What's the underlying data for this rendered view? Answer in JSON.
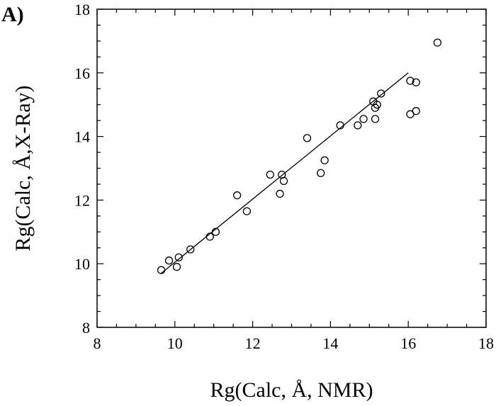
{
  "panel_label": "A)",
  "chart_data": {
    "type": "scatter",
    "title": "",
    "xlabel": "Rg(Calc, Å, NMR)",
    "ylabel": "Rg(Calc, Å,X-Ray)",
    "xlim": [
      8,
      18
    ],
    "ylim": [
      8,
      18
    ],
    "xticks": [
      8,
      10,
      12,
      14,
      16,
      18
    ],
    "yticks": [
      8,
      10,
      12,
      14,
      16,
      18
    ],
    "grid": false,
    "series": [
      {
        "marker": "open-circle",
        "points": [
          [
            9.65,
            9.8
          ],
          [
            9.85,
            10.1
          ],
          [
            10.05,
            9.9
          ],
          [
            10.1,
            10.2
          ],
          [
            10.4,
            10.45
          ],
          [
            10.9,
            10.85
          ],
          [
            11.05,
            11.0
          ],
          [
            11.6,
            12.15
          ],
          [
            11.85,
            11.65
          ],
          [
            12.45,
            12.8
          ],
          [
            12.7,
            12.2
          ],
          [
            12.75,
            12.8
          ],
          [
            12.8,
            12.6
          ],
          [
            13.4,
            13.95
          ],
          [
            13.75,
            12.85
          ],
          [
            13.85,
            13.25
          ],
          [
            14.25,
            14.35
          ],
          [
            14.7,
            14.35
          ],
          [
            14.85,
            14.55
          ],
          [
            15.1,
            15.1
          ],
          [
            15.15,
            14.9
          ],
          [
            15.2,
            15.0
          ],
          [
            15.15,
            14.55
          ],
          [
            15.3,
            15.35
          ],
          [
            16.05,
            15.75
          ],
          [
            16.2,
            15.7
          ],
          [
            16.05,
            14.7
          ],
          [
            16.2,
            14.8
          ],
          [
            16.75,
            16.95
          ]
        ]
      }
    ],
    "fit_line": {
      "x": [
        9.65,
        16.0
      ],
      "y": [
        9.7,
        16.0
      ]
    }
  }
}
